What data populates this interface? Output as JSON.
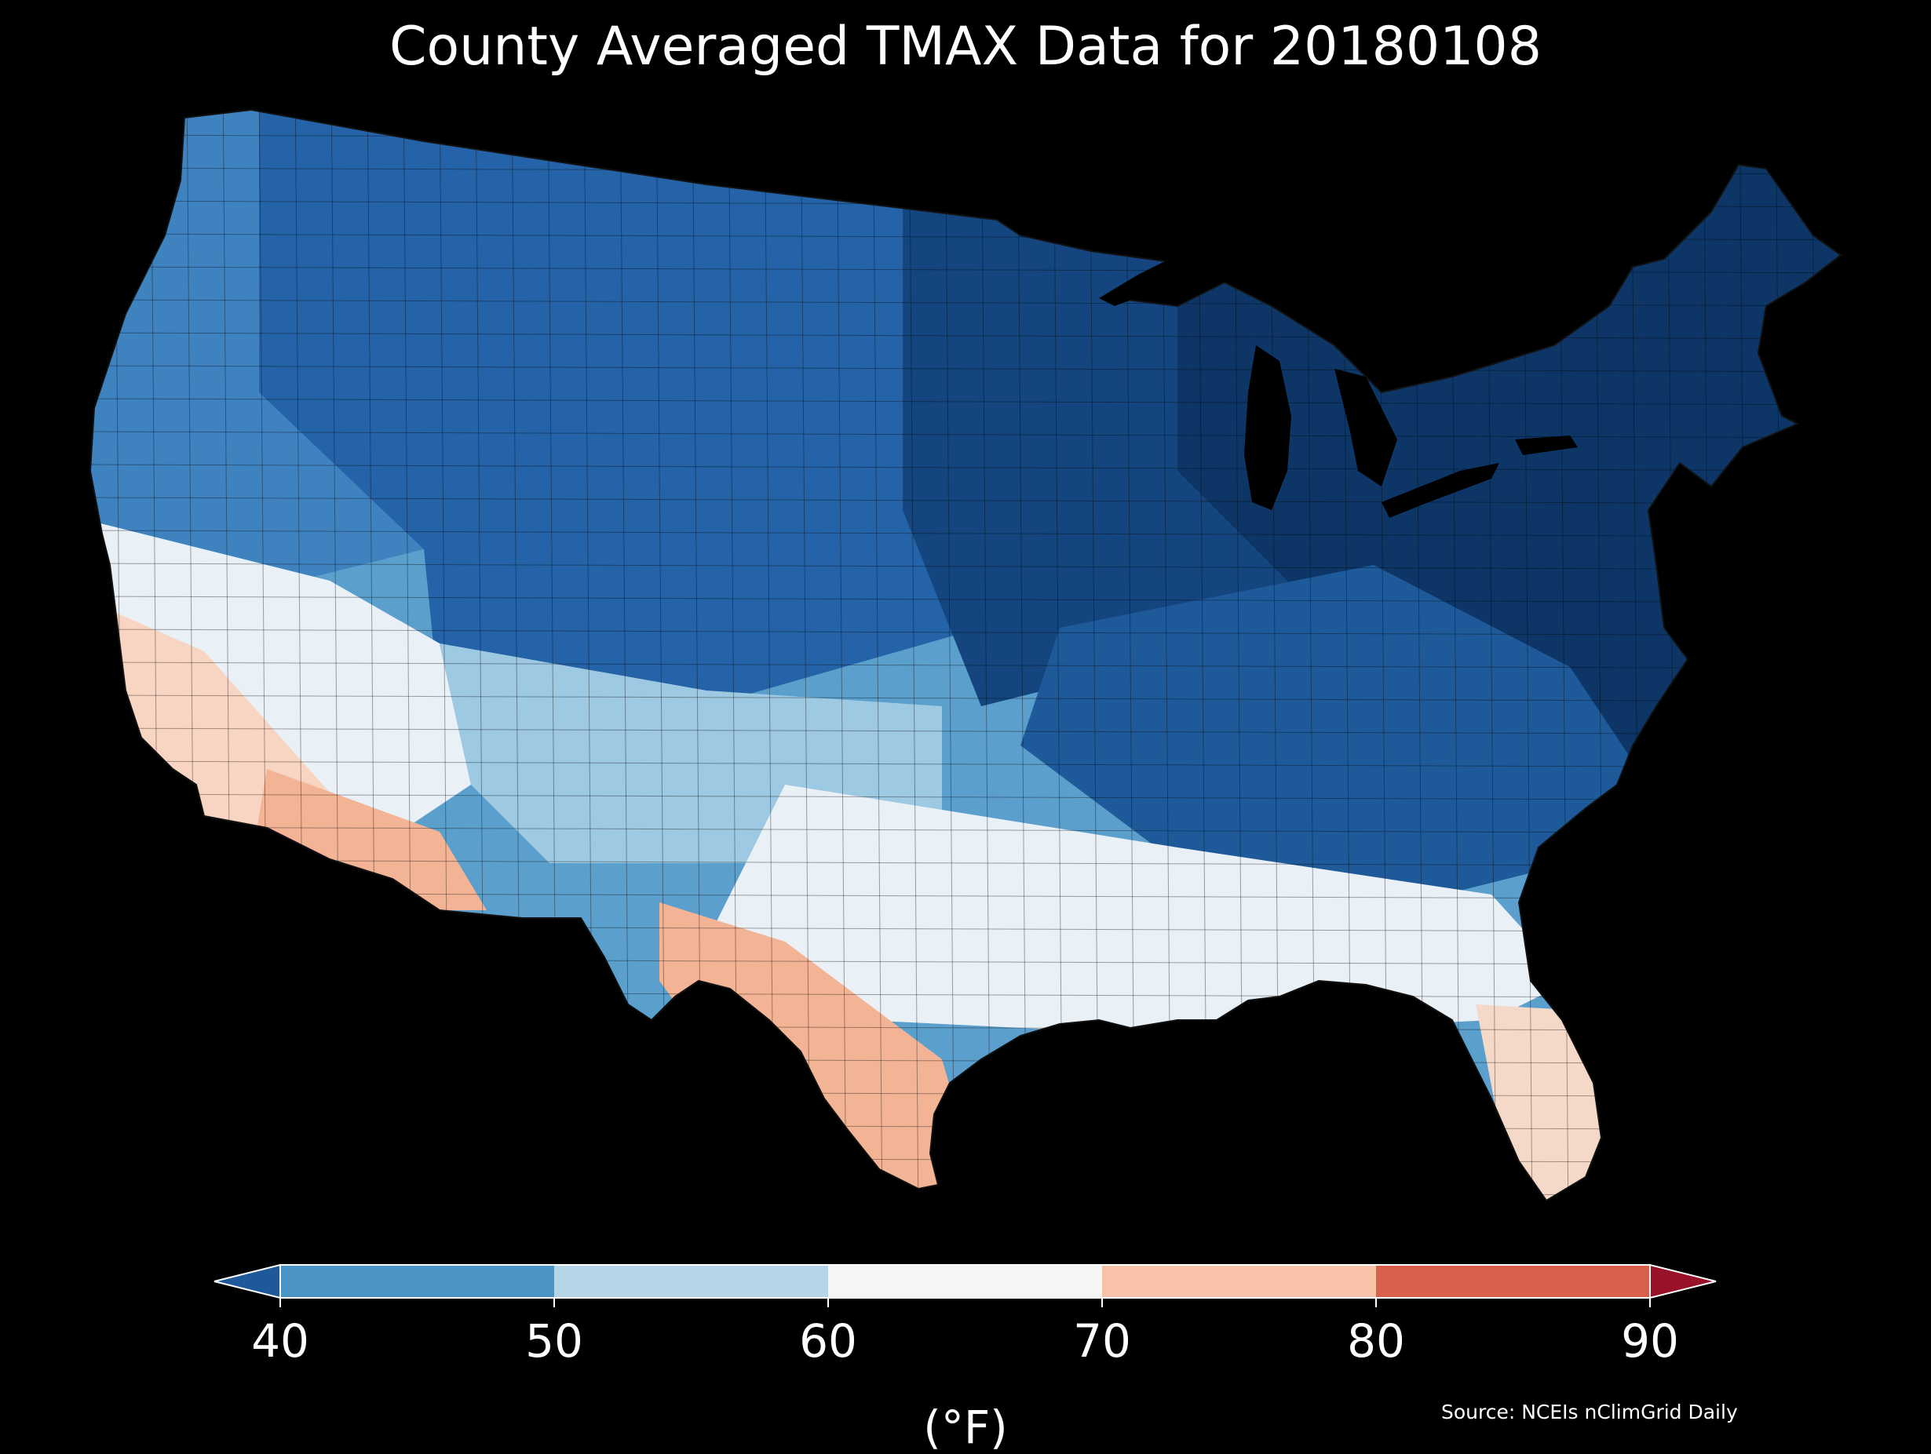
{
  "title": "County Averaged TMAX Data for 20180108",
  "colorbar": {
    "ticks": [
      "40",
      "50",
      "60",
      "70",
      "80",
      "90"
    ],
    "unit_label": "(°F)",
    "bins": [
      {
        "range": "<40",
        "color": "#1e5a9a"
      },
      {
        "range": "40-50",
        "color": "#4a95c6"
      },
      {
        "range": "50-60",
        "color": "#b5d5e8"
      },
      {
        "range": "60-70",
        "color": "#f5f5f5"
      },
      {
        "range": "70-80",
        "color": "#f7c2a7"
      },
      {
        "range": "80-90",
        "color": "#d9604d"
      },
      {
        "range": ">90",
        "color": "#9a1229"
      }
    ]
  },
  "source": "Source: NCEIs nClimGrid Daily",
  "map": {
    "region": "Contiguous United States",
    "regional_tmax_colors": {
      "pacific_northwest": "#3f82c0",
      "northern_rockies_plains": "#2563a8",
      "upper_midwest": "#14457f",
      "great_lakes_northeast": "#0d3667",
      "mid_atlantic_southeast_interior": "#1e5a9a",
      "central_plains_ohio_valley": "#5b9fcd",
      "southern_plains_gulf": "#e9f0f6",
      "california_coast_desert_sw": "#f8d4c2",
      "south_texas_arizona": "#f3b395",
      "florida": "#f5d9c8"
    }
  }
}
